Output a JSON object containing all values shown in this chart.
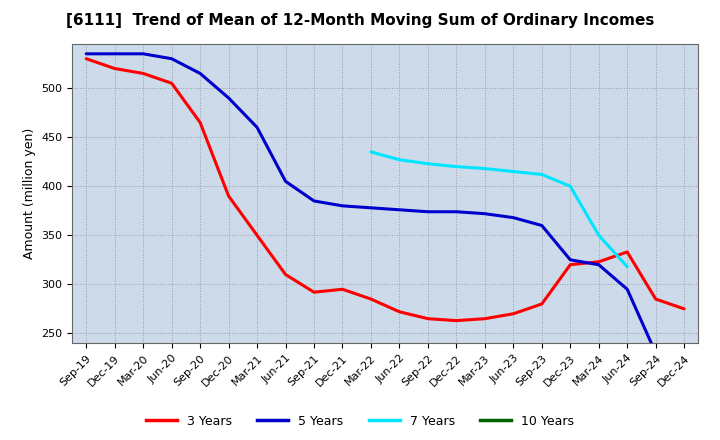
{
  "title": "[6111]  Trend of Mean of 12-Month Moving Sum of Ordinary Incomes",
  "ylabel": "Amount (million yen)",
  "ylim": [
    240,
    545
  ],
  "yticks": [
    250,
    300,
    350,
    400,
    450,
    500
  ],
  "background_color": "#ccdaea",
  "x_labels": [
    "Sep-19",
    "Dec-19",
    "Mar-20",
    "Jun-20",
    "Sep-20",
    "Dec-20",
    "Mar-21",
    "Jun-21",
    "Sep-21",
    "Dec-21",
    "Mar-22",
    "Jun-22",
    "Sep-22",
    "Dec-22",
    "Mar-23",
    "Jun-23",
    "Sep-23",
    "Dec-23",
    "Mar-24",
    "Jun-24",
    "Sep-24",
    "Dec-24"
  ],
  "series_3yr": [
    530,
    520,
    515,
    505,
    465,
    390,
    350,
    310,
    292,
    295,
    285,
    272,
    265,
    263,
    265,
    270,
    280,
    320,
    323,
    333,
    285,
    275
  ],
  "series_5yr": [
    535,
    535,
    535,
    530,
    515,
    490,
    460,
    405,
    385,
    380,
    378,
    376,
    374,
    374,
    372,
    368,
    360,
    325,
    320,
    295,
    230,
    null
  ],
  "series_7yr": [
    null,
    null,
    null,
    null,
    null,
    null,
    null,
    null,
    null,
    null,
    435,
    427,
    423,
    420,
    418,
    415,
    412,
    400,
    350,
    318,
    null,
    null
  ],
  "series_10yr": [
    null,
    null,
    null,
    null,
    null,
    null,
    null,
    null,
    null,
    null,
    null,
    null,
    null,
    null,
    null,
    null,
    null,
    null,
    null,
    null,
    null,
    null
  ],
  "color_3yr": "#ff0000",
  "color_5yr": "#0000cd",
  "color_7yr": "#00e5ff",
  "color_10yr": "#006400",
  "linewidth": 2.2,
  "title_fontsize": 11,
  "axis_label_fontsize": 9,
  "tick_fontsize": 8,
  "legend_fontsize": 9,
  "grid_color": "#9999aa",
  "spine_color": "#666666"
}
